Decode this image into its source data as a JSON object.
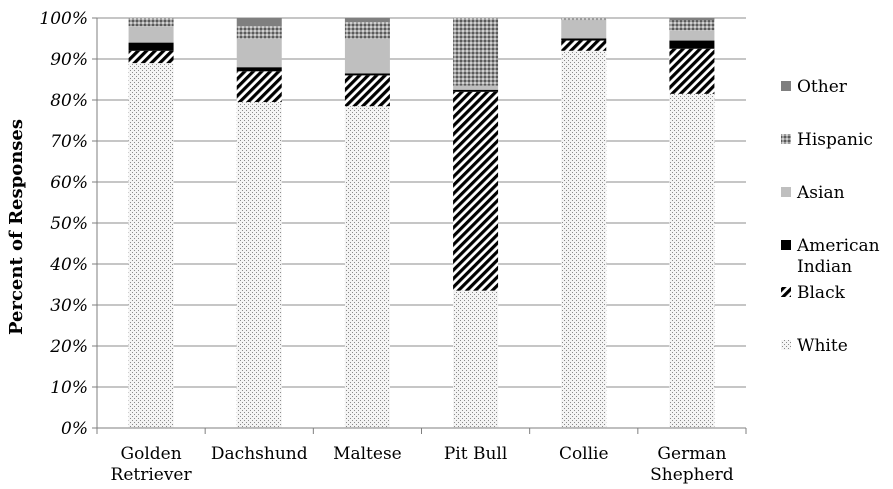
{
  "chart_data": {
    "type": "bar",
    "stacked": true,
    "normalized": true,
    "categories": [
      [
        "Golden",
        "Retriever"
      ],
      [
        "Dachshund"
      ],
      [
        "Maltese"
      ],
      [
        "Pit Bull"
      ],
      [
        "Collie"
      ],
      [
        "German",
        "Shepherd"
      ]
    ],
    "ylabel": "Percent of Responses",
    "xlabel": "",
    "title": "",
    "ylim": [
      0,
      100
    ],
    "yticks": [
      "0%",
      "10%",
      "20%",
      "30%",
      "40%",
      "50%",
      "60%",
      "70%",
      "80%",
      "90%",
      "100%"
    ],
    "grid": true,
    "legend_position": "right",
    "series": [
      {
        "name": "White",
        "pattern": "dots-light",
        "color": "#d9d9d9",
        "values": [
          89,
          79.5,
          78.5,
          33.5,
          92,
          81.5
        ]
      },
      {
        "name": "Black",
        "pattern": "diagonal-stripes",
        "color": "#000000",
        "values": [
          3,
          7.5,
          7.5,
          48.5,
          2.5,
          11
        ]
      },
      {
        "name": "American Indian",
        "pattern": "solid",
        "color": "#000000",
        "values": [
          2,
          1,
          0.5,
          0.5,
          0.5,
          2
        ]
      },
      {
        "name": "Asian",
        "pattern": "solid",
        "color": "#bfbfbf",
        "values": [
          4,
          7,
          8.5,
          1,
          4.5,
          2.5
        ]
      },
      {
        "name": "Hispanic",
        "pattern": "dots-dense",
        "color": "#a6a6a6",
        "values": [
          2,
          3,
          4,
          16.5,
          0.5,
          2.5
        ]
      },
      {
        "name": "Other",
        "pattern": "solid",
        "color": "#7f7f7f",
        "values": [
          0,
          2,
          1,
          0,
          0,
          0.5
        ]
      }
    ],
    "legend_order": [
      "Other",
      "Hispanic",
      "Asian",
      "American Indian",
      "Black",
      "White"
    ]
  }
}
